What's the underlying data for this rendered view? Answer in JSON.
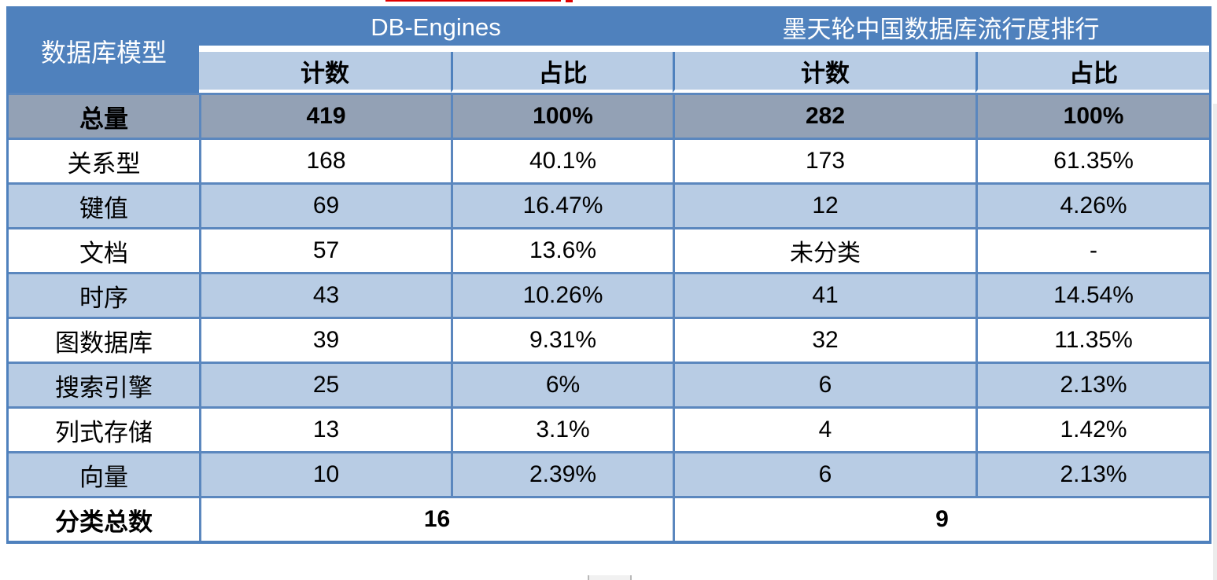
{
  "chart_data": {
    "type": "table",
    "corner_header": "数据库模型",
    "groups": [
      {
        "label": "DB-Engines"
      },
      {
        "label": "墨天轮中国数据库流行度排行"
      }
    ],
    "sub_headers": [
      "计数",
      "占比",
      "计数",
      "占比"
    ],
    "rows": [
      {
        "label": "总量",
        "values": [
          "419",
          "100%",
          "282",
          "100%"
        ],
        "emphasis": "total"
      },
      {
        "label": "关系型",
        "values": [
          "168",
          "40.1%",
          "173",
          "61.35%"
        ]
      },
      {
        "label": "键值",
        "values": [
          "69",
          "16.47%",
          "12",
          "4.26%"
        ]
      },
      {
        "label": "文档",
        "values": [
          "57",
          "13.6%",
          "未分类",
          "-"
        ]
      },
      {
        "label": "时序",
        "values": [
          "43",
          "10.26%",
          "41",
          "14.54%"
        ]
      },
      {
        "label": "图数据库",
        "values": [
          "39",
          "9.31%",
          "32",
          "11.35%"
        ]
      },
      {
        "label": "搜索引擎",
        "values": [
          "25",
          "6%",
          "6",
          "2.13%"
        ]
      },
      {
        "label": "列式存储",
        "values": [
          "13",
          "3.1%",
          "4",
          "1.42%"
        ]
      },
      {
        "label": "向量",
        "values": [
          "10",
          "2.39%",
          "6",
          "2.13%"
        ]
      }
    ],
    "footer": {
      "label": "分类总数",
      "values": [
        "16",
        "9"
      ]
    },
    "layout": "banded rows white/light-blue, emphasized gray total row, merged footer cells"
  },
  "colors": {
    "header_blue": "#4f81bd",
    "band_light_blue": "#b8cce4",
    "total_row_gray_blue": "#93a1b5",
    "border_blue": "#5b87be",
    "artifact_red": "#e00000"
  }
}
